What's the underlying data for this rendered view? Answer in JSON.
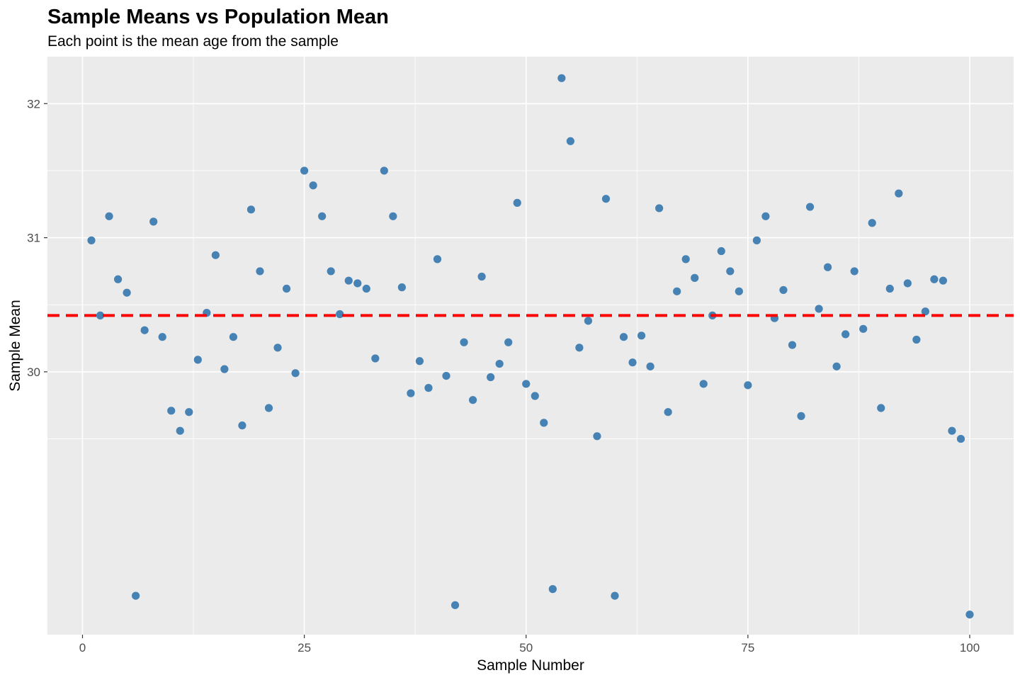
{
  "chart_data": {
    "type": "scatter",
    "title": "Sample Means vs Population Mean",
    "subtitle": "Each point is the mean age from the sample",
    "xlabel": "Sample Number",
    "ylabel": "Sample Mean",
    "xlim": [
      -3.95,
      104.95
    ],
    "ylim": [
      28.04,
      32.35
    ],
    "x_ticks": [
      0,
      25,
      50,
      75,
      100
    ],
    "x_tick_labels": [
      "0",
      "25",
      "50",
      "75",
      "100"
    ],
    "y_ticks": [
      30,
      31,
      32
    ],
    "y_tick_labels": [
      "30",
      "31",
      "32"
    ],
    "grid": true,
    "point_color": "#4682B4",
    "reference_line": {
      "y": 30.42,
      "color": "#FF0000",
      "style": "dashed"
    },
    "x": [
      1,
      2,
      3,
      4,
      5,
      6,
      7,
      8,
      9,
      10,
      11,
      12,
      13,
      14,
      15,
      16,
      17,
      18,
      19,
      20,
      21,
      22,
      23,
      24,
      25,
      26,
      27,
      28,
      29,
      30,
      31,
      32,
      33,
      34,
      35,
      36,
      37,
      38,
      39,
      40,
      41,
      42,
      43,
      44,
      45,
      46,
      47,
      48,
      49,
      50,
      51,
      52,
      53,
      54,
      55,
      56,
      57,
      58,
      59,
      60,
      61,
      62,
      63,
      64,
      65,
      66,
      67,
      68,
      69,
      70,
      71,
      72,
      73,
      74,
      75,
      76,
      77,
      78,
      79,
      80,
      81,
      82,
      83,
      84,
      85,
      86,
      87,
      88,
      89,
      90,
      91,
      92,
      93,
      94,
      95,
      96,
      97,
      98,
      99,
      100
    ],
    "y": [
      30.98,
      30.42,
      31.16,
      30.69,
      30.59,
      28.33,
      30.31,
      31.12,
      30.26,
      29.71,
      29.56,
      29.7,
      30.09,
      30.44,
      30.87,
      30.02,
      30.26,
      29.6,
      31.21,
      30.75,
      29.73,
      30.18,
      30.62,
      29.99,
      31.5,
      31.39,
      31.16,
      30.75,
      30.43,
      30.68,
      30.66,
      30.62,
      30.1,
      31.5,
      31.16,
      30.63,
      29.84,
      30.08,
      29.88,
      30.84,
      29.97,
      28.26,
      30.22,
      29.79,
      30.71,
      29.96,
      30.06,
      30.22,
      31.26,
      29.91,
      29.82,
      29.62,
      28.38,
      32.19,
      31.72,
      30.18,
      30.38,
      29.52,
      31.29,
      28.33,
      30.26,
      30.07,
      30.27,
      30.04,
      31.22,
      29.7,
      30.6,
      30.84,
      30.7,
      29.91,
      30.42,
      30.9,
      30.75,
      30.6,
      29.9,
      30.98,
      31.16,
      30.4,
      30.61,
      30.2,
      29.67,
      31.23,
      30.47,
      30.78,
      30.04,
      30.28,
      30.75,
      30.32,
      31.11,
      29.73,
      30.62,
      31.33,
      30.66,
      30.24,
      30.45,
      30.69,
      30.68,
      29.56,
      29.5,
      28.19
    ]
  }
}
